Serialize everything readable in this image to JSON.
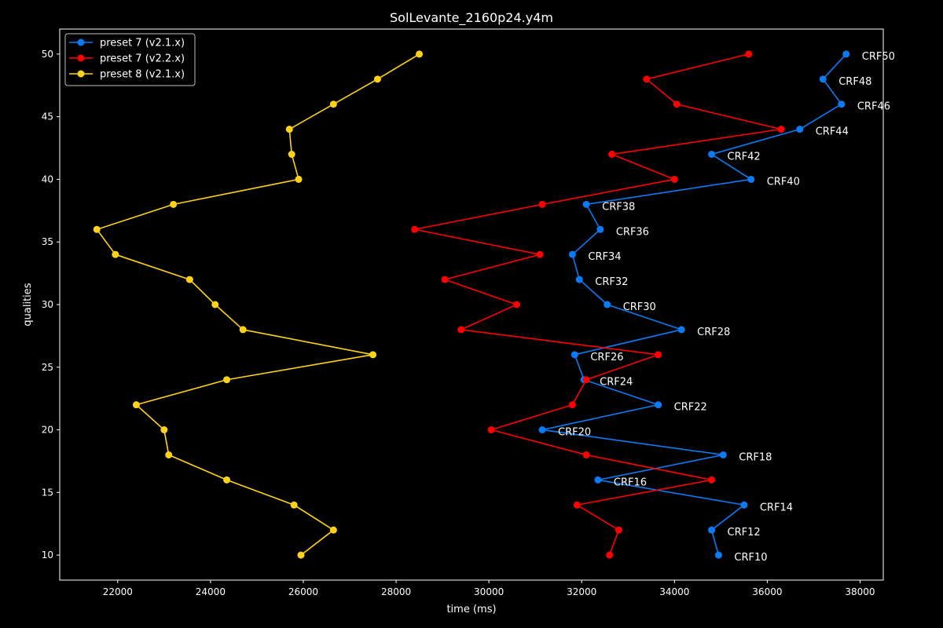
{
  "chart_data": {
    "type": "line",
    "title": "SolLevante_2160p24.y4m",
    "xlabel": "time (ms)",
    "ylabel": "qualities",
    "xlim": [
      20750,
      38500
    ],
    "ylim": [
      8,
      52
    ],
    "xticks": [
      22000,
      24000,
      26000,
      28000,
      30000,
      32000,
      34000,
      36000,
      38000
    ],
    "yticks": [
      10,
      15,
      20,
      25,
      30,
      35,
      40,
      45,
      50
    ],
    "grid": false,
    "legend_position": "top-left",
    "series": [
      {
        "name": "preset 7 (v2.1.x)",
        "color": "#0a7bf4",
        "points": [
          {
            "x": 37700,
            "y": 50
          },
          {
            "x": 37200,
            "y": 48
          },
          {
            "x": 37600,
            "y": 46
          },
          {
            "x": 36700,
            "y": 44
          },
          {
            "x": 34800,
            "y": 42
          },
          {
            "x": 35650,
            "y": 40
          },
          {
            "x": 32100,
            "y": 38
          },
          {
            "x": 32400,
            "y": 36
          },
          {
            "x": 31800,
            "y": 34
          },
          {
            "x": 31950,
            "y": 32
          },
          {
            "x": 32550,
            "y": 30
          },
          {
            "x": 34150,
            "y": 28
          },
          {
            "x": 31850,
            "y": 26
          },
          {
            "x": 32050,
            "y": 24
          },
          {
            "x": 33650,
            "y": 22
          },
          {
            "x": 31150,
            "y": 20
          },
          {
            "x": 35050,
            "y": 18
          },
          {
            "x": 32350,
            "y": 16
          },
          {
            "x": 35500,
            "y": 14
          },
          {
            "x": 34800,
            "y": 12
          },
          {
            "x": 34950,
            "y": 10
          }
        ]
      },
      {
        "name": "preset 7 (v2.2.x)",
        "color": "#ff0000",
        "points": [
          {
            "x": 35600,
            "y": 50
          },
          {
            "x": 33400,
            "y": 48
          },
          {
            "x": 34050,
            "y": 46
          },
          {
            "x": 36300,
            "y": 44
          },
          {
            "x": 32650,
            "y": 42
          },
          {
            "x": 34000,
            "y": 40
          },
          {
            "x": 31150,
            "y": 38
          },
          {
            "x": 28400,
            "y": 36
          },
          {
            "x": 31100,
            "y": 34
          },
          {
            "x": 29050,
            "y": 32
          },
          {
            "x": 30600,
            "y": 30
          },
          {
            "x": 29400,
            "y": 28
          },
          {
            "x": 33650,
            "y": 26
          },
          {
            "x": 32100,
            "y": 24
          },
          {
            "x": 31800,
            "y": 22
          },
          {
            "x": 30050,
            "y": 20
          },
          {
            "x": 32100,
            "y": 18
          },
          {
            "x": 34800,
            "y": 16
          },
          {
            "x": 31900,
            "y": 14
          },
          {
            "x": 32800,
            "y": 12
          },
          {
            "x": 32600,
            "y": 10
          }
        ]
      },
      {
        "name": "preset 8 (v2.1.x)",
        "color": "#ffd21a",
        "points": [
          {
            "x": 28500,
            "y": 50
          },
          {
            "x": 27600,
            "y": 48
          },
          {
            "x": 26650,
            "y": 46
          },
          {
            "x": 25700,
            "y": 44
          },
          {
            "x": 25750,
            "y": 42
          },
          {
            "x": 25900,
            "y": 40
          },
          {
            "x": 23200,
            "y": 38
          },
          {
            "x": 21550,
            "y": 36
          },
          {
            "x": 21950,
            "y": 34
          },
          {
            "x": 23550,
            "y": 32
          },
          {
            "x": 24100,
            "y": 30
          },
          {
            "x": 24700,
            "y": 28
          },
          {
            "x": 27500,
            "y": 26
          },
          {
            "x": 24350,
            "y": 24
          },
          {
            "x": 22400,
            "y": 22
          },
          {
            "x": 23000,
            "y": 20
          },
          {
            "x": 23100,
            "y": 18
          },
          {
            "x": 24350,
            "y": 16
          },
          {
            "x": 25800,
            "y": 14
          },
          {
            "x": 26650,
            "y": 12
          },
          {
            "x": 25950,
            "y": 10
          }
        ]
      }
    ],
    "annotations": [
      {
        "text": "CRF50",
        "x": 37700,
        "y": 50
      },
      {
        "text": "CRF48",
        "x": 37200,
        "y": 48
      },
      {
        "text": "CRF46",
        "x": 37600,
        "y": 46
      },
      {
        "text": "CRF44",
        "x": 36700,
        "y": 44
      },
      {
        "text": "CRF42",
        "x": 34800,
        "y": 42
      },
      {
        "text": "CRF40",
        "x": 35650,
        "y": 40
      },
      {
        "text": "CRF38",
        "x": 32100,
        "y": 38
      },
      {
        "text": "CRF36",
        "x": 32400,
        "y": 36
      },
      {
        "text": "CRF34",
        "x": 31800,
        "y": 34
      },
      {
        "text": "CRF32",
        "x": 31950,
        "y": 32
      },
      {
        "text": "CRF30",
        "x": 32550,
        "y": 30
      },
      {
        "text": "CRF28",
        "x": 34150,
        "y": 28
      },
      {
        "text": "CRF26",
        "x": 31850,
        "y": 26
      },
      {
        "text": "CRF24",
        "x": 32050,
        "y": 24
      },
      {
        "text": "CRF22",
        "x": 33650,
        "y": 22
      },
      {
        "text": "CRF20",
        "x": 31150,
        "y": 20
      },
      {
        "text": "CRF18",
        "x": 35050,
        "y": 18
      },
      {
        "text": "CRF16",
        "x": 32350,
        "y": 16
      },
      {
        "text": "CRF14",
        "x": 35500,
        "y": 14
      },
      {
        "text": "CRF12",
        "x": 34800,
        "y": 12
      },
      {
        "text": "CRF10",
        "x": 34950,
        "y": 10
      }
    ]
  }
}
